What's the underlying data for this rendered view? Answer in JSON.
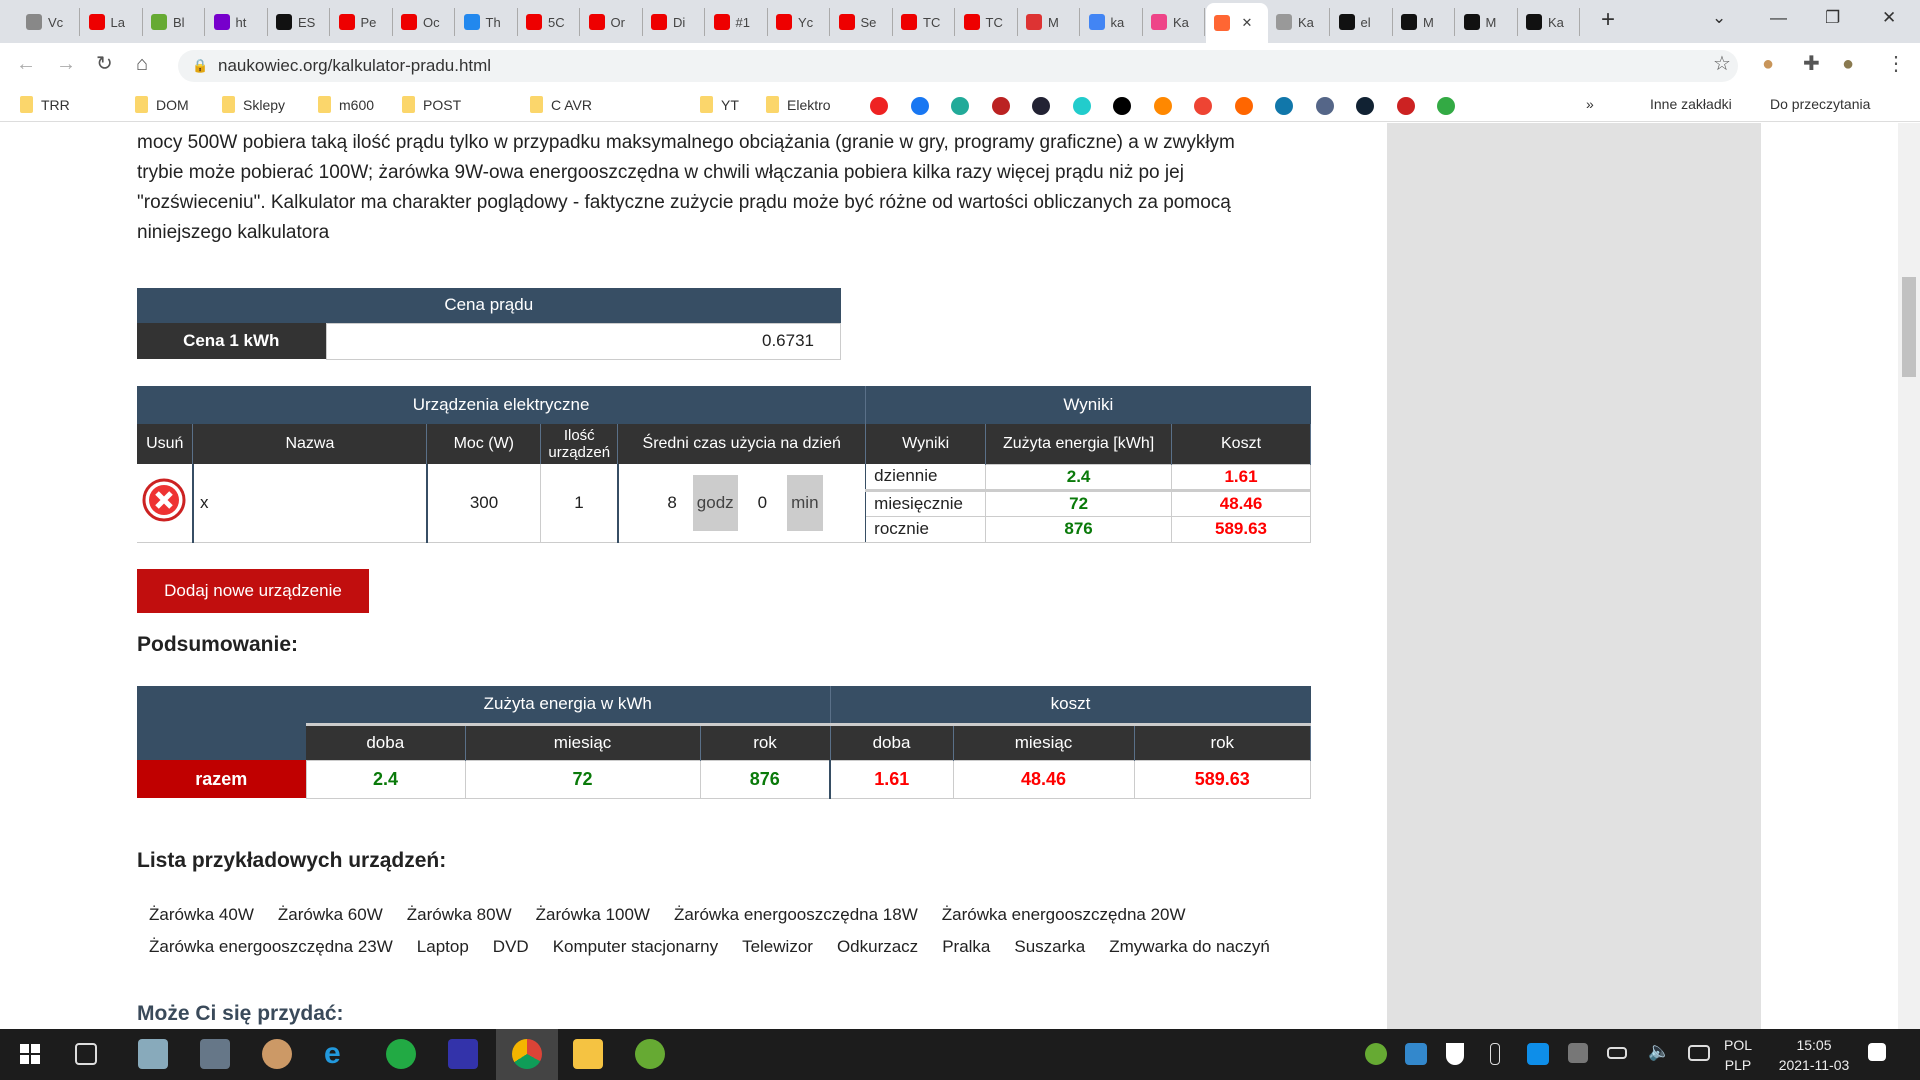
{
  "browser": {
    "tabs": [
      {
        "label": "Vc",
        "color": "#888"
      },
      {
        "label": "La",
        "color": "#e00"
      },
      {
        "label": "Bl",
        "color": "#6a3"
      },
      {
        "label": "ht",
        "color": "#70c"
      },
      {
        "label": "ES",
        "color": "#111"
      },
      {
        "label": "Pe",
        "color": "#e00"
      },
      {
        "label": "Oc",
        "color": "#e00"
      },
      {
        "label": "Th",
        "color": "#28e"
      },
      {
        "label": "5C",
        "color": "#e00"
      },
      {
        "label": "Or",
        "color": "#e00"
      },
      {
        "label": "Di",
        "color": "#e00"
      },
      {
        "label": "#1",
        "color": "#e00"
      },
      {
        "label": "Yc",
        "color": "#e00"
      },
      {
        "label": "Se",
        "color": "#e00"
      },
      {
        "label": "TC",
        "color": "#e00"
      },
      {
        "label": "TC",
        "color": "#e00"
      },
      {
        "label": "M",
        "color": "#d33"
      },
      {
        "label": "ka",
        "color": "#4285f4"
      },
      {
        "label": "Ka",
        "color": "#e48"
      },
      {
        "label": "",
        "color": "#f63",
        "active": true
      },
      {
        "label": "Ka",
        "color": "#999"
      },
      {
        "label": "el",
        "color": "#111"
      },
      {
        "label": "M",
        "color": "#111"
      },
      {
        "label": "M",
        "color": "#111"
      },
      {
        "label": "Ka",
        "color": "#111"
      }
    ],
    "new_tab": "+",
    "close_tab": "✕",
    "url": "naukowiec.org/kalkulator-pradu.html",
    "bookmarks": [
      "TRR",
      "DOM",
      "Sklepy",
      "m600",
      "POST",
      "C AVR",
      "YT",
      "Elektro"
    ],
    "bookmarks_more": "»",
    "other_bookmarks": "Inne zakładki",
    "reading_list": "Do przeczytania"
  },
  "intro": {
    "lines": [
      "mocy 500W pobiera taką ilość prądu tylko w przypadku maksymalnego obciążania (granie w gry, programy graficzne) a w zwykłym",
      "trybie może pobierać 100W; żarówka 9W-owa energooszczędna w chwili włączania pobiera kilka razy więcej prądu niż po jej",
      "\"rozświeceniu\". Kalkulator ma charakter poglądowy - faktyczne zużycie prądu może być różne od wartości obliczanych za pomocą",
      "niniejszego kalkulatora"
    ]
  },
  "price": {
    "title": "Cena prądu",
    "label": "Cena 1 kWh",
    "value": "0.6731"
  },
  "devices": {
    "group_devices": "Urządzenia elektryczne",
    "group_results": "Wyniki",
    "headers": [
      "Usuń",
      "Nazwa",
      "Moc (W)",
      "Ilość urządzeń",
      "Średni czas użycia na dzień",
      "Wyniki",
      "Zużyta energia [kWh]",
      "Koszt"
    ],
    "row": {
      "name": "x",
      "power": "300",
      "count": "1",
      "hours": "8",
      "hours_unit": "godz",
      "minutes": "0",
      "minutes_unit": "min"
    },
    "results": [
      {
        "period": "dziennie",
        "energy": "2.4",
        "cost": "1.61"
      },
      {
        "period": "miesięcznie",
        "energy": "72",
        "cost": "48.46"
      },
      {
        "period": "rocznie",
        "energy": "876",
        "cost": "589.63"
      }
    ]
  },
  "add_button": "Dodaj nowe urządzenie",
  "summary": {
    "title": "Podsumowanie:",
    "group_energy": "Zużyta energia w kWh",
    "group_cost": "koszt",
    "subheaders": [
      "doba",
      "miesiąc",
      "rok",
      "doba",
      "miesiąc",
      "rok"
    ],
    "row_label": "razem",
    "energy": [
      "2.4",
      "72",
      "876"
    ],
    "cost": [
      "1.61",
      "48.46",
      "589.63"
    ]
  },
  "examples": {
    "title": "Lista przykładowych urządzeń:",
    "row1": [
      "Żarówka 40W",
      "Żarówka 60W",
      "Żarówka 80W",
      "Żarówka 100W",
      "Żarówka energooszczędna 18W",
      "Żarówka energooszczędna 20W"
    ],
    "row2": [
      "Żarówka energooszczędna 23W",
      "Laptop",
      "DVD",
      "Komputer stacjonarny",
      "Telewizor",
      "Odkurzacz",
      "Pralka",
      "Suszarka",
      "Zmywarka do naczyń"
    ]
  },
  "more_title": "Może Ci się przydać:",
  "taskbar": {
    "lang1": "POL",
    "lang2": "PLP",
    "time": "15:05",
    "date": "2021-11-03"
  }
}
